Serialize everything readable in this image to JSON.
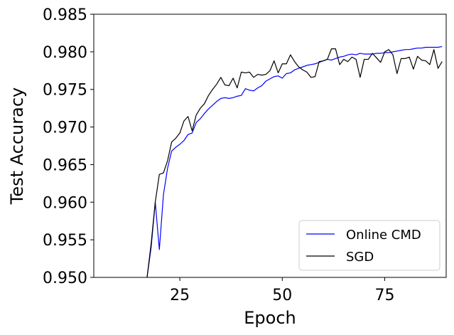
{
  "chart_data": {
    "type": "line",
    "xlabel": "Epoch",
    "ylabel": "Test Accuracy",
    "xlim": [
      4,
      90
    ],
    "ylim": [
      0.95,
      0.985
    ],
    "xticks": [
      25,
      50,
      75
    ],
    "xtick_labels": [
      "25",
      "50",
      "75"
    ],
    "yticks": [
      0.95,
      0.955,
      0.96,
      0.965,
      0.97,
      0.975,
      0.98,
      0.985
    ],
    "ytick_labels": [
      "0.950",
      "0.955",
      "0.960",
      "0.965",
      "0.970",
      "0.975",
      "0.980",
      "0.985"
    ],
    "grid": false,
    "legend_position": "lower-right",
    "series": [
      {
        "name": "Online CMD",
        "color": "#0000ff",
        "x": [
          17,
          18,
          19,
          20,
          21,
          22,
          23,
          24,
          25,
          26,
          27,
          28,
          29,
          30,
          31,
          32,
          33,
          34,
          35,
          36,
          37,
          38,
          39,
          40,
          41,
          42,
          43,
          44,
          45,
          46,
          47,
          48,
          49,
          50,
          51,
          52,
          53,
          54,
          55,
          56,
          57,
          58,
          59,
          60,
          61,
          62,
          63,
          64,
          65,
          66,
          67,
          68,
          69,
          70,
          71,
          72,
          73,
          74,
          75,
          76,
          77,
          78,
          79,
          80,
          81,
          82,
          83,
          84,
          85,
          86,
          87,
          88,
          89
        ],
        "values": [
          0.95,
          0.954,
          0.96,
          0.9537,
          0.961,
          0.9645,
          0.9668,
          0.9673,
          0.9677,
          0.9682,
          0.969,
          0.9692,
          0.9706,
          0.9711,
          0.9718,
          0.9724,
          0.9729,
          0.9734,
          0.9738,
          0.9739,
          0.9738,
          0.9739,
          0.9741,
          0.9742,
          0.9751,
          0.9749,
          0.9748,
          0.9752,
          0.9755,
          0.9761,
          0.9764,
          0.9767,
          0.9768,
          0.9765,
          0.9771,
          0.9772,
          0.9776,
          0.9778,
          0.978,
          0.9782,
          0.9783,
          0.9784,
          0.9786,
          0.9788,
          0.979,
          0.9789,
          0.9791,
          0.9793,
          0.9794,
          0.9796,
          0.9797,
          0.9796,
          0.9798,
          0.9797,
          0.9797,
          0.9797,
          0.9798,
          0.9798,
          0.9799,
          0.9799,
          0.98,
          0.9801,
          0.9802,
          0.9803,
          0.9803,
          0.9804,
          0.9805,
          0.9805,
          0.9806,
          0.9806,
          0.9806,
          0.9806,
          0.9807
        ]
      },
      {
        "name": "SGD",
        "color": "#000000",
        "x": [
          17,
          18,
          19,
          20,
          21,
          22,
          23,
          24,
          25,
          26,
          27,
          28,
          29,
          30,
          31,
          32,
          33,
          34,
          35,
          36,
          37,
          38,
          39,
          40,
          41,
          42,
          43,
          44,
          45,
          46,
          47,
          48,
          49,
          50,
          51,
          52,
          53,
          54,
          55,
          56,
          57,
          58,
          59,
          60,
          61,
          62,
          63,
          64,
          65,
          66,
          67,
          68,
          69,
          70,
          71,
          72,
          73,
          74,
          75,
          76,
          77,
          78,
          79,
          80,
          81,
          82,
          83,
          84,
          85,
          86,
          87,
          88,
          89
        ],
        "values": [
          0.95,
          0.9545,
          0.96,
          0.9637,
          0.9639,
          0.9655,
          0.968,
          0.9685,
          0.9692,
          0.9708,
          0.9714,
          0.9695,
          0.9716,
          0.9725,
          0.9731,
          0.9742,
          0.975,
          0.9757,
          0.9766,
          0.9756,
          0.9755,
          0.9765,
          0.9752,
          0.9773,
          0.9772,
          0.9773,
          0.9766,
          0.977,
          0.9769,
          0.977,
          0.9775,
          0.9788,
          0.9772,
          0.9784,
          0.9784,
          0.9796,
          0.9787,
          0.978,
          0.9776,
          0.9773,
          0.9766,
          0.9767,
          0.9787,
          0.9788,
          0.979,
          0.9804,
          0.9804,
          0.9783,
          0.979,
          0.9787,
          0.9793,
          0.979,
          0.9766,
          0.979,
          0.979,
          0.9798,
          0.9792,
          0.9786,
          0.98,
          0.9803,
          0.9796,
          0.9771,
          0.9791,
          0.9791,
          0.9793,
          0.9777,
          0.9794,
          0.9789,
          0.9788,
          0.9783,
          0.9803,
          0.9778,
          0.9787
        ]
      }
    ]
  }
}
